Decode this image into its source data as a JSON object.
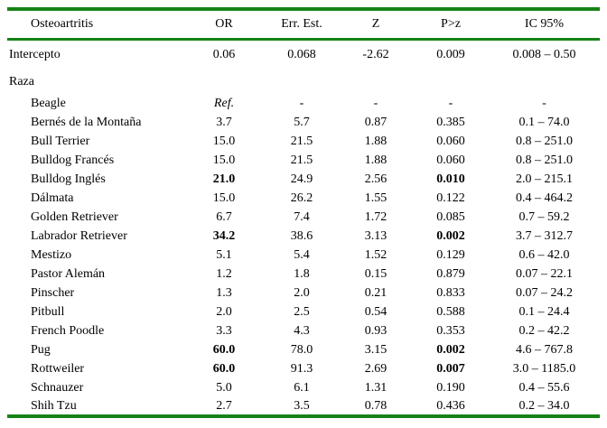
{
  "colors": {
    "accent_green": "#168216"
  },
  "table": {
    "headers": [
      "Osteoartritis",
      "OR",
      "Err. Est.",
      "Z",
      "P>z",
      "IC 95%"
    ],
    "intercept": {
      "label": "Intercepto",
      "or": "0.06",
      "err": "0.068",
      "z": "-2.62",
      "p": "0.009",
      "ic": "0.008 – 0.50"
    },
    "group_label": "Raza",
    "rows": [
      {
        "label": "Beagle",
        "or": "Ref.",
        "err": "-",
        "z": "-",
        "p": "-",
        "ic": "-",
        "ref": true
      },
      {
        "label": "Bernés de la Montaña",
        "or": "3.7",
        "err": "5.7",
        "z": "0.87",
        "p": "0.385",
        "ic": "0.1 – 74.0"
      },
      {
        "label": "Bull Terrier",
        "or": "15.0",
        "err": "21.5",
        "z": "1.88",
        "p": "0.060",
        "ic": "0.8 – 251.0"
      },
      {
        "label": "Bulldog Francés",
        "or": "15.0",
        "err": "21.5",
        "z": "1.88",
        "p": "0.060",
        "ic": "0.8 – 251.0"
      },
      {
        "label": "Bulldog Inglés",
        "or": "21.0",
        "err": "24.9",
        "z": "2.56",
        "p": "0.010",
        "ic": "2.0 – 215.1",
        "bold": true
      },
      {
        "label": "Dálmata",
        "or": "15.0",
        "err": "26.2",
        "z": "1.55",
        "p": "0.122",
        "ic": "0.4 – 464.2"
      },
      {
        "label": "Golden Retriever",
        "or": "6.7",
        "err": "7.4",
        "z": "1.72",
        "p": "0.085",
        "ic": "0.7 – 59.2"
      },
      {
        "label": "Labrador Retriever",
        "or": "34.2",
        "err": "38.6",
        "z": "3.13",
        "p": "0.002",
        "ic": "3.7 – 312.7",
        "bold": true
      },
      {
        "label": "Mestizo",
        "or": "5.1",
        "err": "5.4",
        "z": "1.52",
        "p": "0.129",
        "ic": "0.6 – 42.0"
      },
      {
        "label": "Pastor Alemán",
        "or": "1.2",
        "err": "1.8",
        "z": "0.15",
        "p": "0.879",
        "ic": "0.07 – 22.1"
      },
      {
        "label": "Pinscher",
        "or": "1.3",
        "err": "2.0",
        "z": "0.21",
        "p": "0.833",
        "ic": "0.07 – 24.2"
      },
      {
        "label": "Pitbull",
        "or": "2.0",
        "err": "2.5",
        "z": "0.54",
        "p": "0.588",
        "ic": "0.1 – 24.4"
      },
      {
        "label": "French Poodle",
        "or": "3.3",
        "err": "4.3",
        "z": "0.93",
        "p": "0.353",
        "ic": "0.2 – 42.2"
      },
      {
        "label": "Pug",
        "or": "60.0",
        "err": "78.0",
        "z": "3.15",
        "p": "0.002",
        "ic": "4.6 – 767.8",
        "bold": true
      },
      {
        "label": "Rottweiler",
        "or": "60.0",
        "err": "91.3",
        "z": "2.69",
        "p": "0.007",
        "ic": "3.0 – 1185.0",
        "bold": true
      },
      {
        "label": "Schnauzer",
        "or": "5.0",
        "err": "6.1",
        "z": "1.31",
        "p": "0.190",
        "ic": "0.4 – 55.6"
      },
      {
        "label": "Shih Tzu",
        "or": "2.7",
        "err": "3.5",
        "z": "0.78",
        "p": "0.436",
        "ic": "0.2 – 34.0"
      }
    ]
  }
}
